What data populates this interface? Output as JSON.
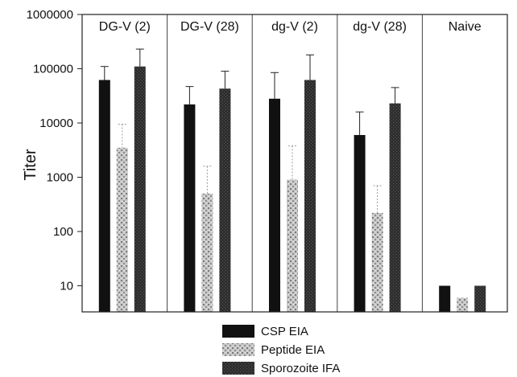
{
  "chart_data": {
    "type": "bar",
    "ylabel": "Titer",
    "xlabel": "",
    "title": "",
    "yscale": "log",
    "ylim": [
      3.2,
      1000000
    ],
    "yticks": [
      10,
      100,
      1000,
      10000,
      100000,
      1000000
    ],
    "ytick_labels": [
      "10",
      "100",
      "1000",
      "10000",
      "100000",
      "1000000"
    ],
    "grid": false,
    "legend_position": "bottom-center",
    "colors": {
      "CSP EIA": "#111111",
      "Peptide EIA": "#b4b4b4",
      "Sporozoite IFA": "#3a3a3a"
    },
    "categories": [
      "DG-V (2)",
      "DG-V (28)",
      "dg-V (2)",
      "dg-V (28)",
      "Naive"
    ],
    "series": [
      {
        "name": "CSP EIA",
        "values": [
          62000,
          22000,
          28000,
          6000,
          10
        ],
        "error_upper": [
          110000,
          47000,
          85000,
          16000,
          null
        ]
      },
      {
        "name": "Peptide EIA",
        "values": [
          3500,
          500,
          900,
          220,
          6
        ],
        "error_upper": [
          9500,
          1600,
          3800,
          700,
          null
        ]
      },
      {
        "name": "Sporozoite IFA",
        "values": [
          110000,
          43000,
          62000,
          23000,
          10
        ],
        "error_upper": [
          230000,
          90000,
          180000,
          45000,
          null
        ]
      }
    ]
  }
}
